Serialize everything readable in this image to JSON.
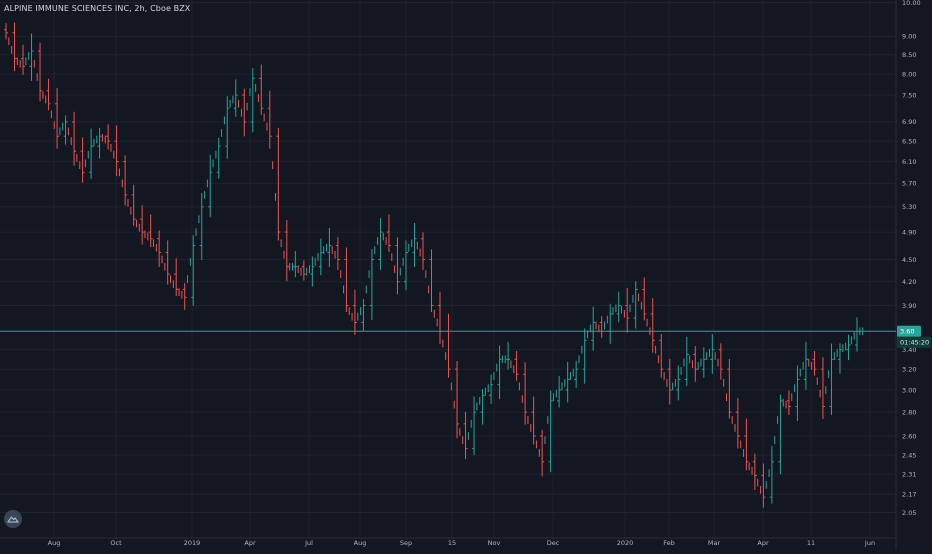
{
  "title": "ALPINE IMMUNE SCIENCES INC, 2h, Cboe BZX",
  "colors": {
    "background": "#131722",
    "grid": "#1e222d",
    "up": "#26a69a",
    "down": "#ef5350",
    "price_line": "#26a69a",
    "axis_text": "#b2b5be"
  },
  "chart_data": {
    "type": "ohlc",
    "title": "ALPINE IMMUNE SCIENCES INC, 2h, Cboe BZX",
    "price_axis": {
      "ticks": [
        "10.00",
        "9.00",
        "8.50",
        "8.00",
        "7.50",
        "6.90",
        "6.50",
        "6.10",
        "5.70",
        "5.30",
        "4.90",
        "4.50",
        "4.20",
        "3.90",
        "3.40",
        "3.20",
        "3.00",
        "2.80",
        "2.60",
        "2.45",
        "2.31",
        "2.17",
        "2.05"
      ],
      "scale": "log",
      "range": [
        2.0,
        10.0
      ]
    },
    "time_axis": {
      "ticks": [
        "Aug",
        "Oct",
        "2019",
        "Apr",
        "Jul",
        "Aug",
        "Sep",
        "15",
        "Nov",
        "Dec",
        "2020",
        "Feb",
        "Mar",
        "Apr",
        "11",
        "Jun"
      ]
    },
    "last_price": {
      "value": "3.60",
      "countdown": "01:45:20"
    },
    "grid": true,
    "series": [
      {
        "values": [
          9.1,
          8.4,
          8.2,
          8.6,
          7.6,
          7.3,
          6.6,
          6.9,
          6.3,
          5.9,
          6.4,
          6.6,
          6.5,
          6.1,
          5.5,
          5.1,
          4.9,
          4.8,
          4.6,
          4.3,
          4.1,
          4.0,
          4.7,
          5.3,
          5.9,
          6.4,
          7.2,
          7.5,
          6.9,
          7.9,
          7.2,
          6.6,
          4.9,
          4.4,
          4.4,
          4.3,
          4.4,
          4.6,
          4.7,
          4.5,
          3.9,
          3.7,
          3.9,
          4.5,
          4.9,
          4.7,
          4.2,
          4.6,
          4.8,
          4.5,
          3.9,
          3.6,
          3.2,
          2.7,
          2.5,
          2.8,
          2.95,
          3.05,
          3.3,
          3.3,
          3.15,
          2.8,
          2.6,
          2.4,
          2.9,
          3.0,
          3.1,
          3.2,
          3.5,
          3.7,
          3.6,
          3.8,
          3.9,
          3.75,
          4.1,
          3.8,
          3.5,
          3.2,
          3.0,
          3.1,
          3.35,
          3.2,
          3.3,
          3.4,
          3.2,
          2.8,
          2.6,
          2.4,
          2.3,
          2.15,
          2.4,
          2.9,
          2.85,
          3.1,
          3.3,
          3.2,
          2.85,
          3.3,
          3.4,
          3.45,
          3.6
        ]
      }
    ]
  }
}
